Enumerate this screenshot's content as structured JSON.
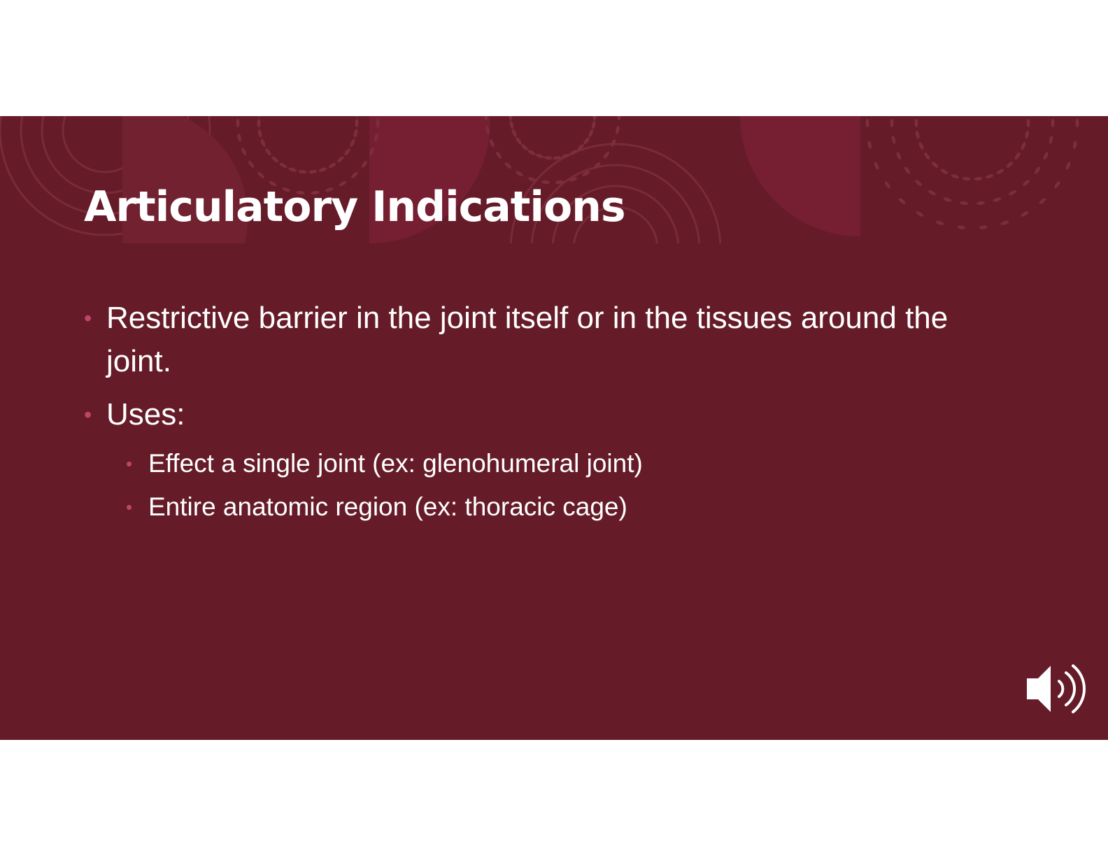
{
  "slide": {
    "title": "Articulatory Indications",
    "bullets": [
      {
        "text": "Restrictive barrier in the joint itself or in the tissues around the joint.",
        "sub": []
      },
      {
        "text": "Uses:",
        "sub": [
          "Effect a single joint (ex: glenohumeral joint)",
          "Entire anatomic region (ex: thoracic cage)"
        ]
      }
    ],
    "audio_icon": "speaker-icon"
  },
  "colors": {
    "background": "#651c28",
    "accent": "#c2436a",
    "text": "#ffffff"
  }
}
